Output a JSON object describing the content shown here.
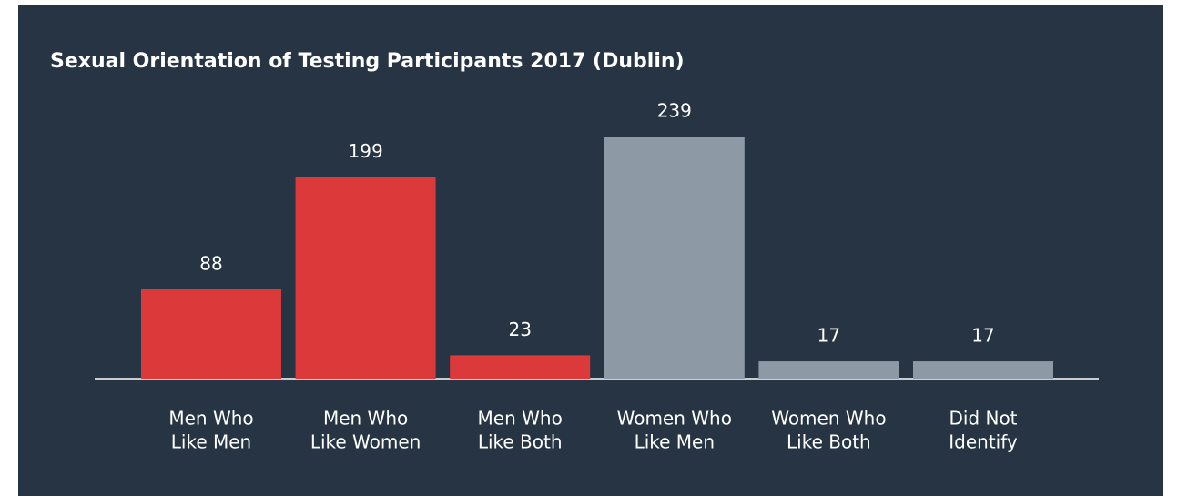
{
  "chart_data": {
    "type": "bar",
    "title": "Sexual Orientation of Testing Participants 2017 (Dublin)",
    "categories": [
      [
        "Men Who",
        "Like Men"
      ],
      [
        "Men Who",
        "Like Women"
      ],
      [
        "Men Who",
        "Like Both"
      ],
      [
        "Women Who",
        "Like Men"
      ],
      [
        "Women Who",
        "Like Both"
      ],
      [
        "Did Not",
        "Identify"
      ]
    ],
    "values": [
      88,
      199,
      23,
      239,
      17,
      17
    ],
    "colors": [
      "#dc3a3a",
      "#dc3a3a",
      "#dc3a3a",
      "#8d9aa6",
      "#8d9aa6",
      "#8d9aa6"
    ]
  }
}
